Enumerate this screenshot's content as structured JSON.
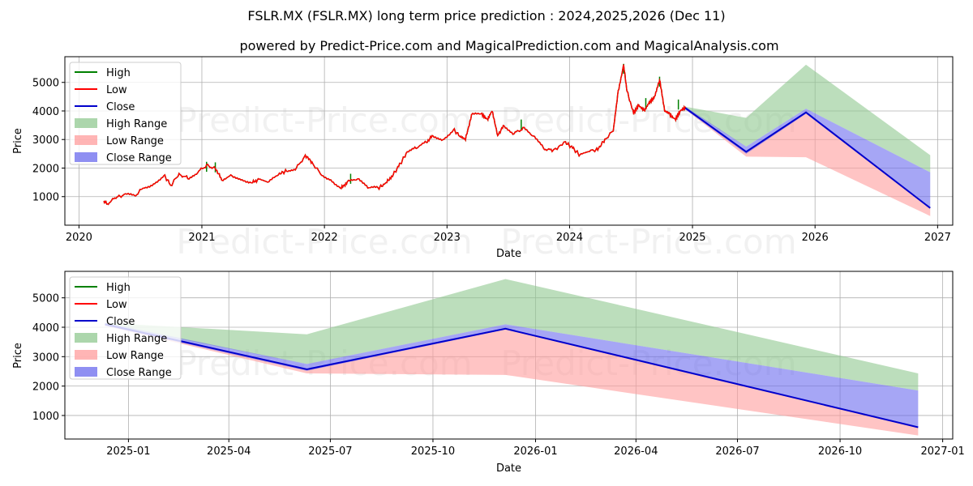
{
  "title": "FSLR.MX (FSLR.MX) long term price prediction : 2024,2025,2026 (Dec 11)",
  "subtitle": "powered by Predict-Price.com and MagicalPrediction.com and MagicalAnalysis.com",
  "watermark": "Predict-Price.com",
  "colors": {
    "high": "#008000",
    "low": "#ff0000",
    "close": "#0000cc",
    "high_range": "#90c890",
    "low_range": "#ff9c9c",
    "close_range": "#6a6aee"
  },
  "chart_data": [
    {
      "type": "line",
      "xlabel": "Date",
      "ylabel": "Price",
      "xlim": [
        "2019-11-20",
        "2027-02-15"
      ],
      "ylim": [
        0,
        5900
      ],
      "x_ticks": [
        "2020",
        "2021",
        "2022",
        "2023",
        "2024",
        "2025",
        "2026",
        "2027"
      ],
      "y_ticks": [
        "1000",
        "2000",
        "3000",
        "4000",
        "5000"
      ],
      "grid": true,
      "legend": "top-left",
      "legend_entries": [
        "High",
        "Low",
        "Close",
        "High Range",
        "Low Range",
        "Close Range"
      ],
      "history_low": [
        [
          "2020-03-15",
          850
        ],
        [
          "2020-03-25",
          760
        ],
        [
          "2020-04-20",
          950
        ],
        [
          "2020-05-15",
          1080
        ],
        [
          "2020-06-15",
          1020
        ],
        [
          "2020-07-10",
          1300
        ],
        [
          "2020-08-10",
          1450
        ],
        [
          "2020-09-10",
          1750
        ],
        [
          "2020-10-01",
          1400
        ],
        [
          "2020-10-25",
          1800
        ],
        [
          "2020-11-20",
          1650
        ],
        [
          "2020-12-20",
          1850
        ],
        [
          "2021-01-15",
          2100
        ],
        [
          "2021-02-10",
          2000
        ],
        [
          "2021-03-01",
          1600
        ],
        [
          "2021-04-01",
          1750
        ],
        [
          "2021-05-01",
          1600
        ],
        [
          "2021-06-01",
          1500
        ],
        [
          "2021-06-20",
          1600
        ],
        [
          "2021-07-20",
          1500
        ],
        [
          "2021-08-20",
          1800
        ],
        [
          "2021-09-10",
          1900
        ],
        [
          "2021-10-10",
          2000
        ],
        [
          "2021-11-05",
          2450
        ],
        [
          "2021-11-25",
          2200
        ],
        [
          "2021-12-20",
          1800
        ],
        [
          "2022-01-20",
          1600
        ],
        [
          "2022-02-20",
          1300
        ],
        [
          "2022-03-10",
          1500
        ],
        [
          "2022-04-10",
          1600
        ],
        [
          "2022-05-10",
          1300
        ],
        [
          "2022-06-10",
          1300
        ],
        [
          "2022-07-01",
          1450
        ],
        [
          "2022-07-20",
          1700
        ],
        [
          "2022-08-10",
          2050
        ],
        [
          "2022-09-01",
          2500
        ],
        [
          "2022-10-01",
          2700
        ],
        [
          "2022-11-01",
          2900
        ],
        [
          "2022-11-20",
          3150
        ],
        [
          "2022-12-20",
          3000
        ],
        [
          "2023-01-20",
          3350
        ],
        [
          "2023-02-10",
          3100
        ],
        [
          "2023-02-25",
          3000
        ],
        [
          "2023-03-15",
          3850
        ],
        [
          "2023-04-15",
          3900
        ],
        [
          "2023-05-01",
          3700
        ],
        [
          "2023-05-15",
          4000
        ],
        [
          "2023-06-01",
          3150
        ],
        [
          "2023-06-20",
          3500
        ],
        [
          "2023-07-20",
          3200
        ],
        [
          "2023-08-15",
          3400
        ],
        [
          "2023-09-15",
          3100
        ],
        [
          "2023-10-15",
          2700
        ],
        [
          "2023-11-10",
          2600
        ],
        [
          "2023-12-20",
          2900
        ],
        [
          "2024-01-10",
          2700
        ],
        [
          "2024-02-01",
          2450
        ],
        [
          "2024-03-01",
          2600
        ],
        [
          "2024-03-25",
          2650
        ],
        [
          "2024-04-15",
          3000
        ],
        [
          "2024-05-10",
          3300
        ],
        [
          "2024-05-25",
          4700
        ],
        [
          "2024-06-10",
          5600
        ],
        [
          "2024-06-20",
          4700
        ],
        [
          "2024-07-10",
          3900
        ],
        [
          "2024-07-25",
          4200
        ],
        [
          "2024-08-10",
          4000
        ],
        [
          "2024-08-25",
          4300
        ],
        [
          "2024-09-10",
          4500
        ],
        [
          "2024-09-25",
          5100
        ],
        [
          "2024-10-10",
          4000
        ],
        [
          "2024-10-25",
          3900
        ],
        [
          "2024-11-10",
          3700
        ],
        [
          "2024-11-25",
          4000
        ],
        [
          "2024-12-11",
          4150
        ]
      ],
      "high_spikes": [
        [
          "2021-01-15",
          2220
        ],
        [
          "2021-02-10",
          2200
        ],
        [
          "2022-03-20",
          1800
        ],
        [
          "2023-08-10",
          3700
        ],
        [
          "2024-06-10",
          5650
        ],
        [
          "2024-08-15",
          4450
        ],
        [
          "2024-09-25",
          5200
        ],
        [
          "2024-11-20",
          4400
        ]
      ],
      "forecast_close": [
        [
          "2024-12-11",
          4100
        ],
        [
          "2025-06-10",
          2570
        ],
        [
          "2025-12-05",
          3950
        ],
        [
          "2026-12-10",
          600
        ]
      ],
      "forecast_high_range": [
        [
          "2024-12-11",
          4150,
          4100
        ],
        [
          "2025-06-10",
          3760,
          2750
        ],
        [
          "2025-12-05",
          5620,
          4080
        ],
        [
          "2026-12-10",
          2450,
          1850
        ]
      ],
      "forecast_low_range": [
        [
          "2024-12-11",
          4050,
          4100
        ],
        [
          "2025-06-10",
          2400,
          2570
        ],
        [
          "2025-12-05",
          2380,
          3950
        ],
        [
          "2026-12-10",
          320,
          600
        ]
      ],
      "forecast_close_range": [
        [
          "2024-12-11",
          4150,
          4050
        ],
        [
          "2025-06-10",
          2750,
          2500
        ],
        [
          "2025-12-05",
          4080,
          3900
        ],
        [
          "2026-12-10",
          1850,
          600
        ]
      ]
    },
    {
      "type": "line",
      "xlabel": "Date",
      "ylabel": "Price",
      "xlim": [
        "2024-11-05",
        "2027-01-10"
      ],
      "ylim": [
        200,
        5900
      ],
      "x_ticks": [
        "2025-01",
        "2025-04",
        "2025-07",
        "2025-10",
        "2026-01",
        "2026-04",
        "2026-07",
        "2026-10",
        "2027-01"
      ],
      "y_ticks": [
        "1000",
        "2000",
        "3000",
        "4000",
        "5000"
      ],
      "grid": true,
      "legend": "top-left",
      "legend_entries": [
        "High",
        "Low",
        "Close",
        "High Range",
        "Low Range",
        "Close Range"
      ],
      "forecast_close": [
        [
          "2024-12-11",
          4100
        ],
        [
          "2025-02-20",
          3500
        ],
        [
          "2025-06-10",
          2570
        ],
        [
          "2025-12-05",
          3950
        ],
        [
          "2026-12-10",
          600
        ]
      ],
      "forecast_high_range": [
        [
          "2024-12-11",
          4150,
          4100
        ],
        [
          "2025-06-10",
          3760,
          2750
        ],
        [
          "2025-12-05",
          5640,
          4100
        ],
        [
          "2026-12-10",
          2430,
          1850
        ]
      ],
      "forecast_low_range": [
        [
          "2024-12-11",
          4050,
          4100
        ],
        [
          "2025-06-10",
          2430,
          2570
        ],
        [
          "2025-12-05",
          2380,
          3950
        ],
        [
          "2026-12-10",
          320,
          600
        ]
      ],
      "forecast_close_range": [
        [
          "2024-12-11",
          4150,
          4050
        ],
        [
          "2025-06-10",
          2750,
          2520
        ],
        [
          "2025-12-05",
          4100,
          3920
        ],
        [
          "2026-12-10",
          1850,
          600
        ]
      ]
    }
  ]
}
